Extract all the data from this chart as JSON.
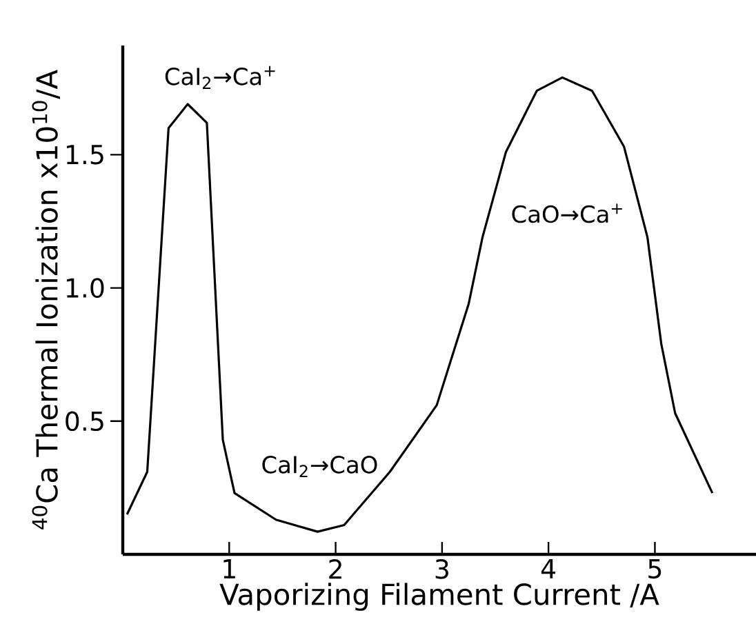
{
  "chart_data": {
    "type": "line",
    "xlabel": "Vaporizing Filament Current /A",
    "ylabel": "$^{40}$Ca Thermal Ionization x10$^{10}$/A",
    "x": [
      0.04,
      0.23,
      0.43,
      0.61,
      0.79,
      0.94,
      1.05,
      1.44,
      1.83,
      2.08,
      2.51,
      2.95,
      3.25,
      3.38,
      3.6,
      3.89,
      4.13,
      4.41,
      4.71,
      4.93,
      5.06,
      5.19,
      5.54
    ],
    "series": [
      {
        "color": "#000000",
        "values": [
          0.15,
          0.31,
          1.6,
          1.69,
          1.62,
          0.43,
          0.23,
          0.13,
          0.085,
          0.11,
          0.31,
          0.56,
          0.94,
          1.19,
          1.51,
          1.74,
          1.79,
          1.74,
          1.53,
          1.19,
          0.79,
          0.53,
          0.23
        ]
      }
    ],
    "xlim": [
      0,
      5.95
    ],
    "ylim": [
      0,
      1.91
    ],
    "xticks": [
      1,
      2,
      3,
      4,
      5
    ],
    "yticks": [
      0.5,
      {
        "value": 1.0,
        "label": "1.0"
      },
      1.5
    ],
    "annotations": [
      "CaI$_{2}$→Ca$^{+}$",
      "CaI$_{2}$→CaO",
      "CaO→Ca$^{+}$"
    ]
  }
}
